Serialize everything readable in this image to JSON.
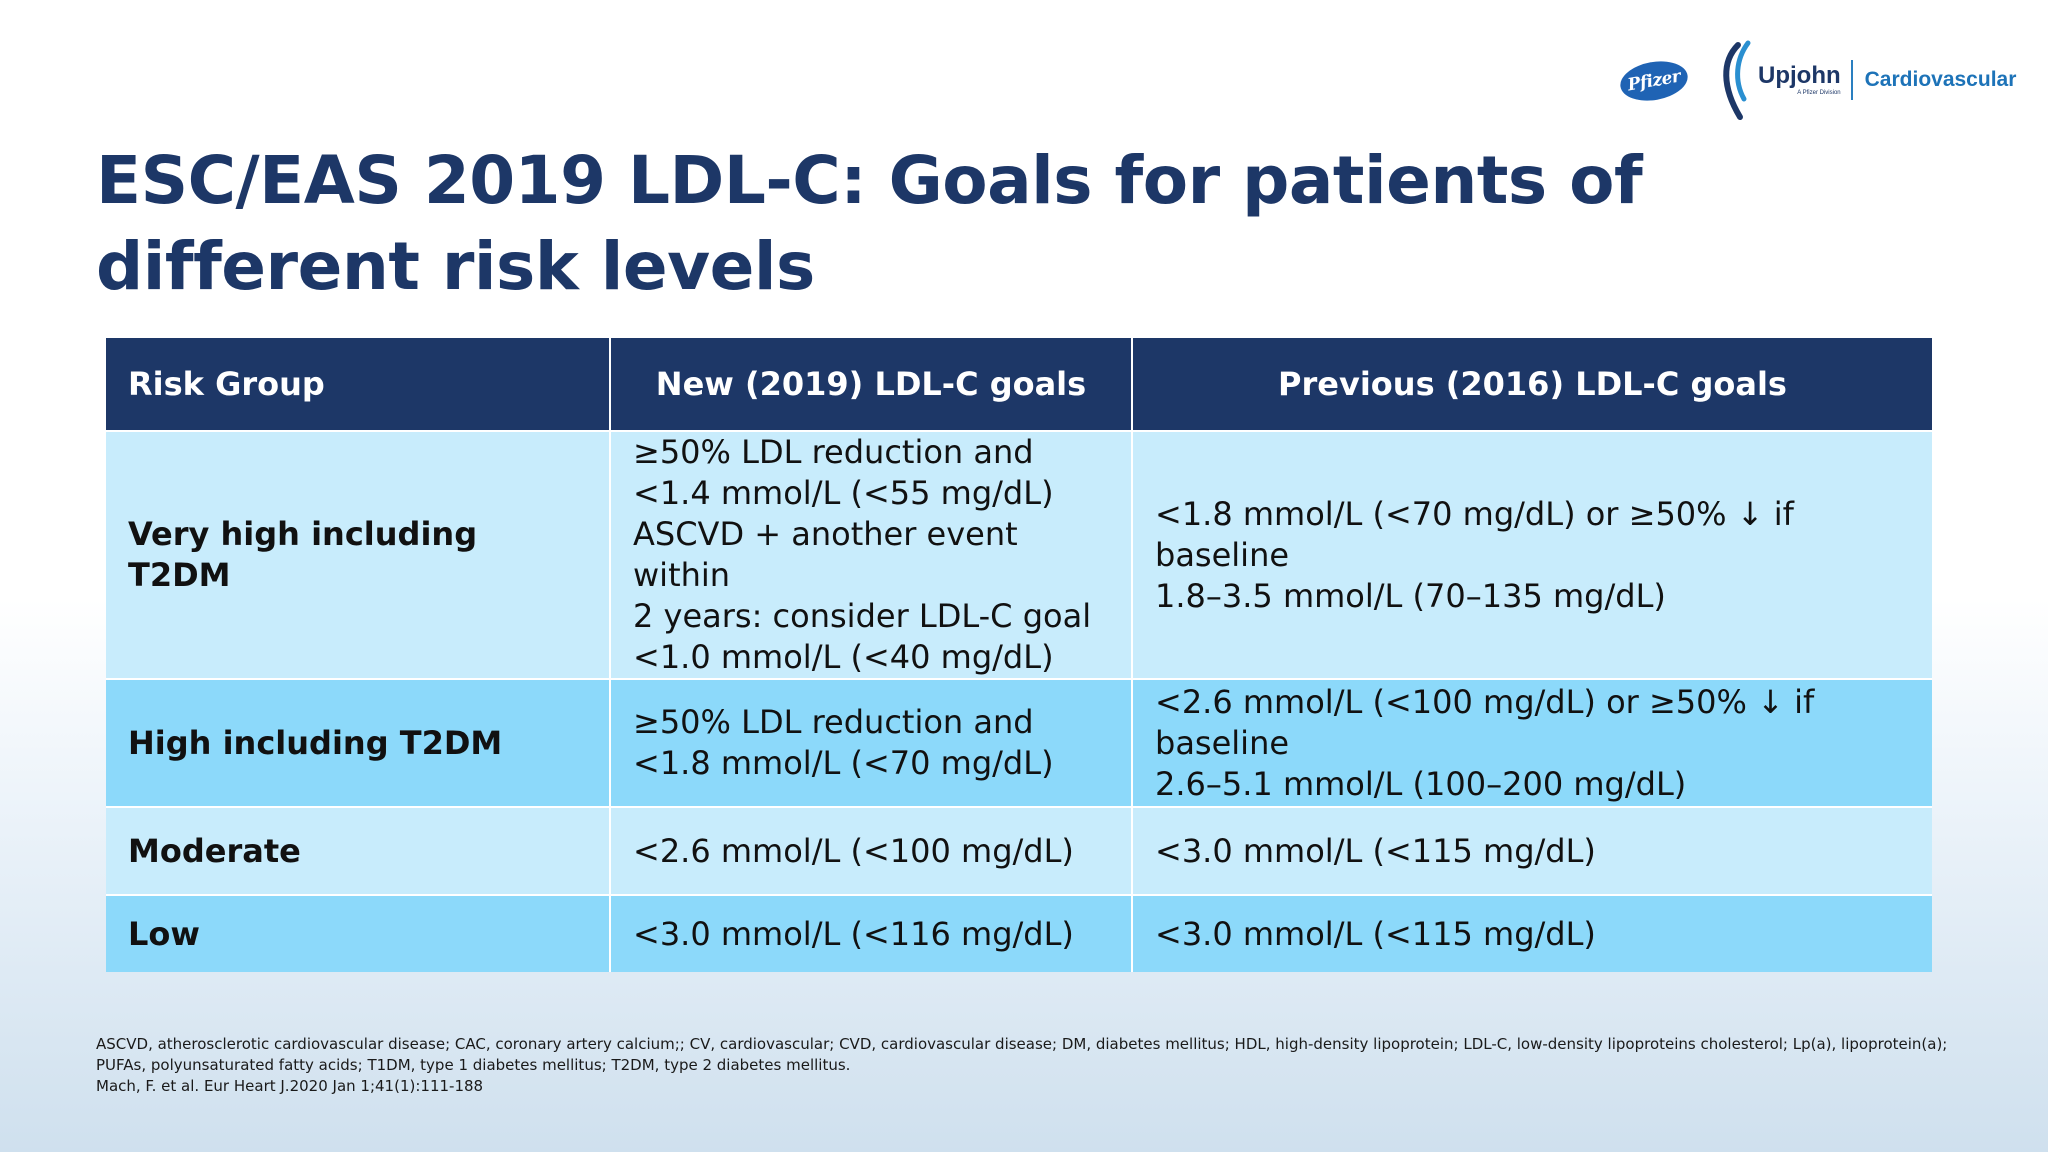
{
  "logos": {
    "pfizer": "Pfizer",
    "upjohn": "Upjohn",
    "upjohn_sub": "A Pfizer Division",
    "division": "Cardiovascular"
  },
  "title": "ESC/EAS 2019 LDL-C: Goals for patients of different risk levels",
  "table": {
    "headers": [
      "Risk Group",
      "New (2019) LDL-C goals",
      "Previous (2016) LDL-C goals"
    ],
    "rows": [
      {
        "group": "Very high including T2DM",
        "new_goal": [
          "≥50% LDL reduction and",
          "<1.4 mmol/L (<55 mg/dL)",
          "ASCVD + another event within",
          "2 years: consider LDL-C goal",
          "<1.0 mmol/L (<40 mg/dL)"
        ],
        "previous_goal": [
          "<1.8 mmol/L (<70 mg/dL) or ≥50% ↓ if baseline",
          "1.8–3.5 mmol/L (70–135 mg/dL)"
        ]
      },
      {
        "group": "High including T2DM",
        "new_goal": [
          "≥50% LDL reduction and",
          "<1.8 mmol/L (<70 mg/dL)"
        ],
        "previous_goal": [
          "<2.6 mmol/L (<100 mg/dL) or ≥50% ↓ if baseline",
          "2.6–5.1 mmol/L (100–200 mg/dL)"
        ]
      },
      {
        "group": "Moderate",
        "new_goal": [
          "<2.6 mmol/L (<100 mg/dL)"
        ],
        "previous_goal": [
          "<3.0 mmol/L (<115 mg/dL)"
        ]
      },
      {
        "group": "Low",
        "new_goal": [
          "<3.0 mmol/L (<116 mg/dL)"
        ],
        "previous_goal": [
          "<3.0 mmol/L (<115 mg/dL)"
        ]
      }
    ]
  },
  "footnotes": [
    "ASCVD, atherosclerotic cardiovascular disease; CAC, coronary artery calcium;; CV, cardiovascular; CVD, cardiovascular disease; DM, diabetes mellitus; HDL, high-density lipoprotein; LDL-C, low-density lipoproteins cholesterol; Lp(a), lipoprotein(a);",
    "PUFAs, polyunsaturated fatty acids; T1DM, type 1 diabetes mellitus; T2DM, type 2 diabetes mellitus.",
    "Mach, F. et al. Eur Heart J.2020 Jan 1;41(1):111-188"
  ],
  "colors": {
    "navy": "#1d3767",
    "row_light": "#c8ecfc",
    "row_dark": "#8cd9fa",
    "pfizer_blue": "#1f63b4",
    "cardio_blue": "#1d73b8"
  }
}
